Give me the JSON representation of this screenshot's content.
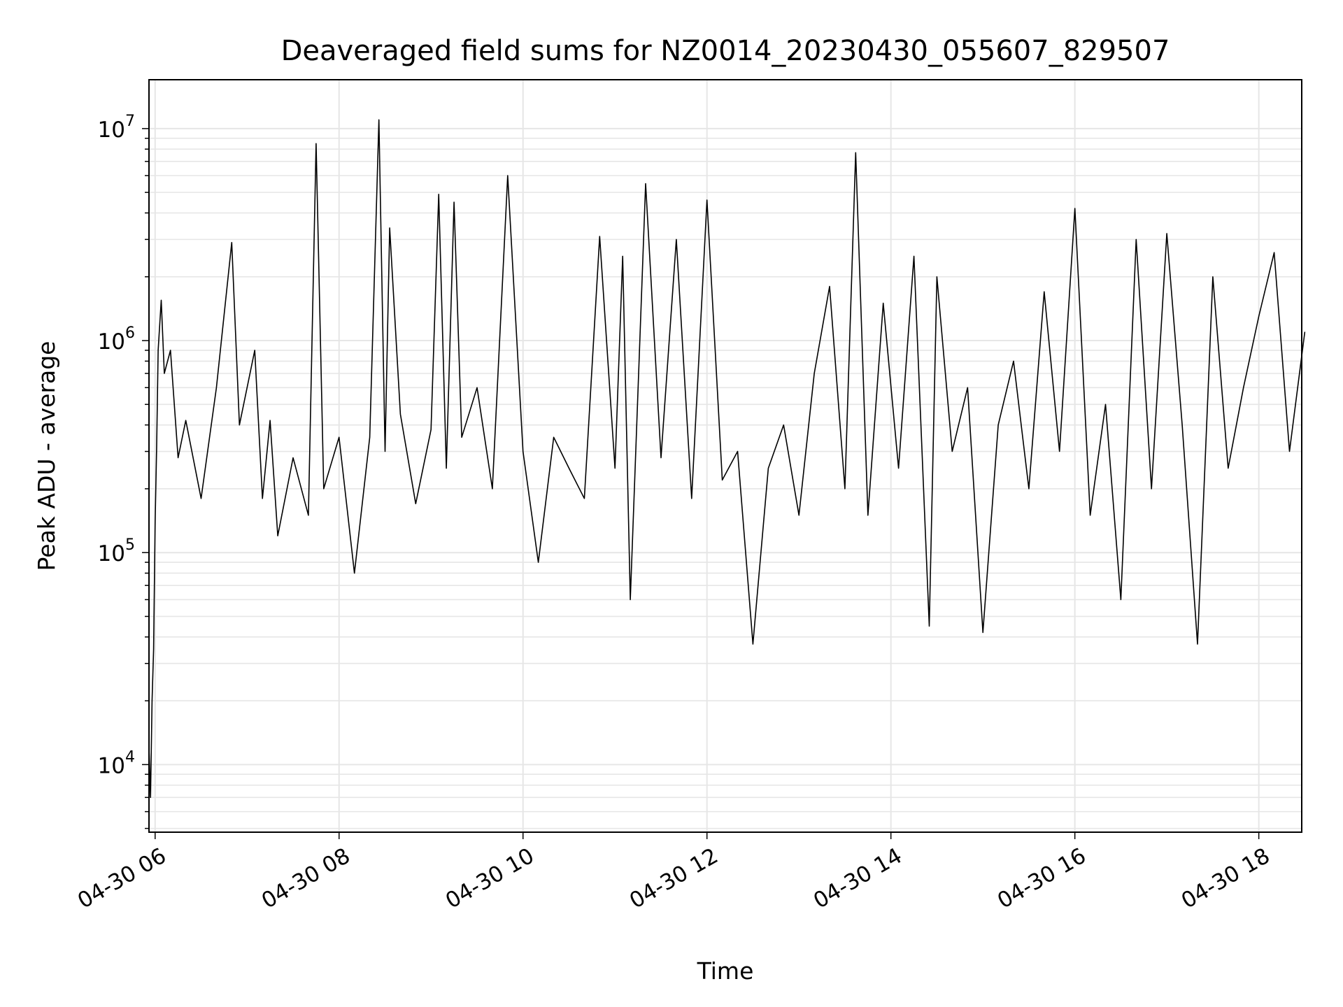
{
  "chart_data": {
    "type": "line",
    "title": "Deaveraged field sums for NZ0014_20230430_055607_829507",
    "xlabel": "Time",
    "ylabel": "Peak ADU - average",
    "yscale": "log",
    "ylim": [
      4800,
      17000000
    ],
    "xlim": [
      "2023-04-30 05:56",
      "2023-04-30 18:28"
    ],
    "x_ticks": [
      {
        "value": "2023-04-30 06:00",
        "label": "04-30 06"
      },
      {
        "value": "2023-04-30 08:00",
        "label": "04-30 08"
      },
      {
        "value": "2023-04-30 10:00",
        "label": "04-30 10"
      },
      {
        "value": "2023-04-30 12:00",
        "label": "04-30 12"
      },
      {
        "value": "2023-04-30 14:00",
        "label": "04-30 14"
      },
      {
        "value": "2023-04-30 16:00",
        "label": "04-30 16"
      },
      {
        "value": "2023-04-30 18:00",
        "label": "04-30 18"
      }
    ],
    "y_ticks": [
      {
        "value": 10000,
        "base": "10",
        "exp": "4"
      },
      {
        "value": 100000,
        "base": "10",
        "exp": "5"
      },
      {
        "value": 1000000,
        "base": "10",
        "exp": "6"
      },
      {
        "value": 10000000,
        "base": "10",
        "exp": "7"
      }
    ],
    "grid": true,
    "line_color": "#000000",
    "grid_color": "#e6e6e6",
    "series": [
      {
        "points": [
          [
            "2023-04-30 05:56",
            12000
          ],
          [
            "2023-04-30 05:57",
            7000
          ],
          [
            "2023-04-30 05:58",
            20000
          ],
          [
            "2023-04-30 05:59",
            35000
          ],
          [
            "2023-04-30 06:00",
            140000
          ],
          [
            "2023-04-30 06:01",
            320000
          ],
          [
            "2023-04-30 06:02",
            900000
          ],
          [
            "2023-04-30 06:04",
            1550000
          ],
          [
            "2023-04-30 06:06",
            700000
          ],
          [
            "2023-04-30 06:10",
            900000
          ],
          [
            "2023-04-30 06:15",
            280000
          ],
          [
            "2023-04-30 06:20",
            420000
          ],
          [
            "2023-04-30 06:30",
            180000
          ],
          [
            "2023-04-30 06:40",
            600000
          ],
          [
            "2023-04-30 06:50",
            2900000
          ],
          [
            "2023-04-30 06:55",
            400000
          ],
          [
            "2023-04-30 07:05",
            900000
          ],
          [
            "2023-04-30 07:10",
            180000
          ],
          [
            "2023-04-30 07:15",
            420000
          ],
          [
            "2023-04-30 07:20",
            120000
          ],
          [
            "2023-04-30 07:30",
            280000
          ],
          [
            "2023-04-30 07:40",
            150000
          ],
          [
            "2023-04-30 07:45",
            8500000
          ],
          [
            "2023-04-30 07:50",
            200000
          ],
          [
            "2023-04-30 08:00",
            350000
          ],
          [
            "2023-04-30 08:10",
            80000
          ],
          [
            "2023-04-30 08:20",
            350000
          ],
          [
            "2023-04-30 08:26",
            11000000
          ],
          [
            "2023-04-30 08:30",
            300000
          ],
          [
            "2023-04-30 08:33",
            3400000
          ],
          [
            "2023-04-30 08:40",
            450000
          ],
          [
            "2023-04-30 08:50",
            170000
          ],
          [
            "2023-04-30 09:00",
            380000
          ],
          [
            "2023-04-30 09:05",
            4900000
          ],
          [
            "2023-04-30 09:10",
            250000
          ],
          [
            "2023-04-30 09:15",
            4500000
          ],
          [
            "2023-04-30 09:20",
            350000
          ],
          [
            "2023-04-30 09:30",
            600000
          ],
          [
            "2023-04-30 09:40",
            200000
          ],
          [
            "2023-04-30 09:50",
            6000000
          ],
          [
            "2023-04-30 10:00",
            300000
          ],
          [
            "2023-04-30 10:10",
            90000
          ],
          [
            "2023-04-30 10:20",
            350000
          ],
          [
            "2023-04-30 10:30",
            250000
          ],
          [
            "2023-04-30 10:40",
            180000
          ],
          [
            "2023-04-30 10:50",
            3100000
          ],
          [
            "2023-04-30 11:00",
            250000
          ],
          [
            "2023-04-30 11:05",
            2500000
          ],
          [
            "2023-04-30 11:10",
            60000
          ],
          [
            "2023-04-30 11:20",
            5500000
          ],
          [
            "2023-04-30 11:30",
            280000
          ],
          [
            "2023-04-30 11:40",
            3000000
          ],
          [
            "2023-04-30 11:50",
            180000
          ],
          [
            "2023-04-30 12:00",
            4600000
          ],
          [
            "2023-04-30 12:10",
            220000
          ],
          [
            "2023-04-30 12:20",
            300000
          ],
          [
            "2023-04-30 12:30",
            37000
          ],
          [
            "2023-04-30 12:40",
            250000
          ],
          [
            "2023-04-30 12:50",
            400000
          ],
          [
            "2023-04-30 13:00",
            150000
          ],
          [
            "2023-04-30 13:10",
            700000
          ],
          [
            "2023-04-30 13:20",
            1800000
          ],
          [
            "2023-04-30 13:30",
            200000
          ],
          [
            "2023-04-30 13:37",
            7700000
          ],
          [
            "2023-04-30 13:45",
            150000
          ],
          [
            "2023-04-30 13:55",
            1500000
          ],
          [
            "2023-04-30 14:05",
            250000
          ],
          [
            "2023-04-30 14:15",
            2500000
          ],
          [
            "2023-04-30 14:25",
            45000
          ],
          [
            "2023-04-30 14:30",
            2000000
          ],
          [
            "2023-04-30 14:40",
            300000
          ],
          [
            "2023-04-30 14:50",
            600000
          ],
          [
            "2023-04-30 15:00",
            42000
          ],
          [
            "2023-04-30 15:10",
            400000
          ],
          [
            "2023-04-30 15:20",
            800000
          ],
          [
            "2023-04-30 15:30",
            200000
          ],
          [
            "2023-04-30 15:40",
            1700000
          ],
          [
            "2023-04-30 15:50",
            300000
          ],
          [
            "2023-04-30 16:00",
            4200000
          ],
          [
            "2023-04-30 16:10",
            150000
          ],
          [
            "2023-04-30 16:20",
            500000
          ],
          [
            "2023-04-30 16:30",
            60000
          ],
          [
            "2023-04-30 16:40",
            3000000
          ],
          [
            "2023-04-30 16:50",
            200000
          ],
          [
            "2023-04-30 17:00",
            3200000
          ],
          [
            "2023-04-30 17:10",
            400000
          ],
          [
            "2023-04-30 17:20",
            37000
          ],
          [
            "2023-04-30 17:30",
            2000000
          ],
          [
            "2023-04-30 17:40",
            250000
          ],
          [
            "2023-04-30 17:50",
            600000
          ],
          [
            "2023-04-30 18:00",
            1300000
          ],
          [
            "2023-04-30 18:10",
            2600000
          ],
          [
            "2023-04-30 18:20",
            300000
          ],
          [
            "2023-04-30 18:30",
            1100000
          ]
        ]
      }
    ]
  }
}
